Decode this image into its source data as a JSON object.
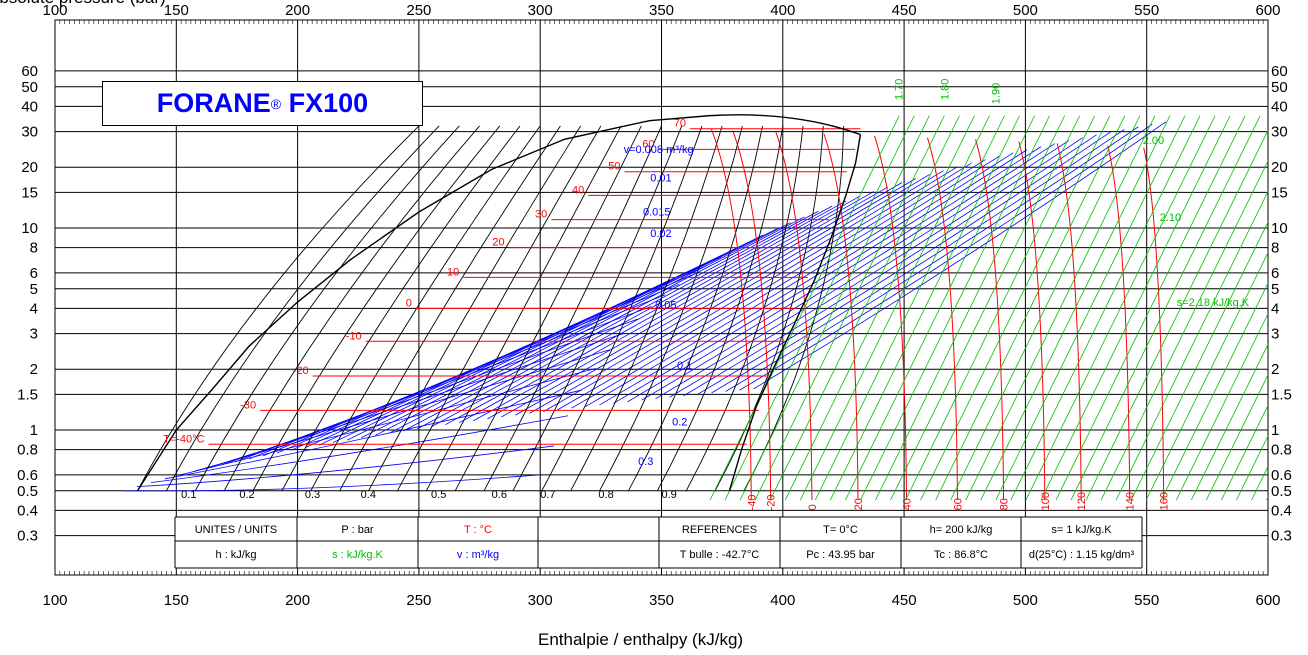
{
  "title": {
    "brand": "FORANE",
    "mark": "®",
    "product": "FX100"
  },
  "axis": {
    "y_title": "Absolute pressure (bar)",
    "x_title": "Enthalpie / enthalpy (kJ/kg)"
  },
  "units_table": {
    "row1": [
      "UNITES / UNITS",
      "P : bar",
      "T : °C",
      "",
      "REFERENCES",
      "T= 0°C",
      "h= 200 kJ/kg",
      "s= 1 kJ/kg.K"
    ],
    "row2": [
      "h : kJ/kg",
      "s : kJ/kg.K",
      "v : m³/kg",
      "",
      "T bulle : -42.7°C",
      "Pc : 43.95 bar",
      "Tc : 86.8°C",
      "d(25°C) : 1.15 kg/dm³"
    ]
  },
  "colors": {
    "temperature": "#ff0000",
    "volume": "#0000ff",
    "entropy": "#00c000",
    "quality": "#000000",
    "title": "#0000ff"
  },
  "chart_data": {
    "type": "line",
    "xlabel": "Enthalpie / enthalpy (kJ/kg)",
    "ylabel": "Absolute pressure (bar)",
    "xlim": [
      100,
      600
    ],
    "ylim_log": [
      0.2,
      80
    ],
    "y_scale": "log",
    "x_ticks": [
      100,
      150,
      200,
      250,
      300,
      350,
      400,
      450,
      500,
      550,
      600
    ],
    "y_ticks": [
      0.3,
      0.4,
      0.5,
      0.6,
      0.8,
      1,
      1.5,
      2,
      3,
      4,
      5,
      6,
      8,
      10,
      15,
      20,
      30,
      40,
      50,
      60
    ],
    "y_tick_labels": [
      "0.3",
      "0.4",
      "0.5",
      "0.6",
      "0.8",
      "1",
      "1.5",
      "2",
      "3",
      "4",
      "5",
      "6",
      "8",
      "10",
      "15",
      "20",
      "30",
      "40",
      "50",
      "60"
    ],
    "grid": true,
    "saturation_dome": {
      "liquid": [
        [
          134,
          0.5
        ],
        [
          150,
          1.0
        ],
        [
          165,
          1.6
        ],
        [
          180,
          2.6
        ],
        [
          200,
          4.3
        ],
        [
          222,
          7.0
        ],
        [
          250,
          12.0
        ],
        [
          280,
          19.5
        ],
        [
          310,
          27.5
        ],
        [
          345,
          34.0
        ],
        [
          370,
          36.0
        ]
      ],
      "vapor": [
        [
          378,
          0.5
        ],
        [
          383,
          0.8
        ],
        [
          389,
          1.3
        ],
        [
          396,
          2.0
        ],
        [
          405,
          3.4
        ],
        [
          413,
          5.5
        ],
        [
          420,
          9.0
        ],
        [
          426,
          14.5
        ],
        [
          430,
          21.0
        ],
        [
          432,
          29.0
        ]
      ]
    },
    "isotherm_labels": [
      "T=-40°C",
      "-30",
      "-20",
      "-10",
      "0",
      "10",
      "20",
      "30",
      "40",
      "50",
      "60",
      "70"
    ],
    "isotherm_pressures": [
      0.85,
      1.25,
      1.85,
      2.75,
      4.0,
      5.7,
      8.0,
      11.0,
      14.5,
      19.0,
      24.5,
      31.0
    ],
    "isotherm_superheat_labels": [
      "-40",
      "-20",
      "0",
      "20",
      "40",
      "60",
      "80",
      "100",
      "120",
      "140",
      "160"
    ],
    "isotherm_superheat_h": [
      387,
      395,
      412,
      431,
      451,
      472,
      491,
      508,
      523,
      543,
      557
    ],
    "quality_labels": [
      "0.1",
      "0.2",
      "0.3",
      "0.4",
      "0.5",
      "0.6",
      "0.7",
      "0.8",
      "0.9"
    ],
    "quality_h": [
      152,
      176,
      203,
      226,
      255,
      280,
      300,
      324,
      350
    ],
    "isochore_labels": [
      "v=0.008 m³/kg",
      "0.01",
      "0.015",
      "0.02",
      "0.05",
      "0.1",
      "0.2",
      "0.3"
    ],
    "isochore_positions": [
      [
        322,
        23.5
      ],
      [
        333,
        17.0
      ],
      [
        330,
        11.5
      ],
      [
        333,
        9.0
      ],
      [
        335,
        4.0
      ],
      [
        344,
        2.0
      ],
      [
        342,
        1.05
      ],
      [
        328,
        0.67
      ]
    ],
    "isentrope_labels": [
      "1.70",
      "1.80",
      "1.90",
      "2.00",
      "2.10",
      "s=2.18 kJ/kg.K"
    ],
    "isentrope_positions": [
      [
        437,
        43.0
      ],
      [
        456,
        43.0
      ],
      [
        477,
        41.0
      ],
      [
        536,
        26.0
      ],
      [
        543,
        10.8
      ],
      [
        550,
        4.1
      ]
    ]
  }
}
